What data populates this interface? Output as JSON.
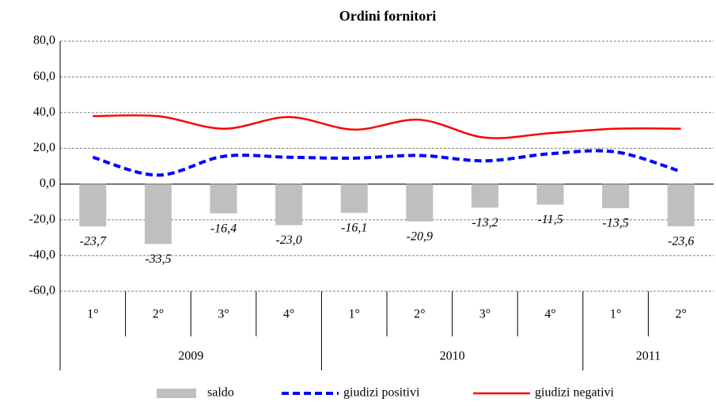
{
  "chart_data": {
    "type": "combo",
    "title": "Ordini fornitori",
    "categories": [
      "1°",
      "2°",
      "3°",
      "4°",
      "1°",
      "2°",
      "3°",
      "4°",
      "1°",
      "2°"
    ],
    "category_groups": [
      "2009",
      "2010",
      "2011"
    ],
    "series": [
      {
        "name": "saldo",
        "type": "bar",
        "color": "#bfbfbf",
        "values": [
          -23.7,
          -33.5,
          -16.4,
          -23.0,
          -16.1,
          -20.9,
          -13.2,
          -11.5,
          -13.5,
          -23.6
        ],
        "value_labels": [
          "-23,7",
          "-33,5",
          "-16,4",
          "-23,0",
          "-16,1",
          "-20,9",
          "-13,2",
          "-11,5",
          "-13,5",
          "-23,6"
        ]
      },
      {
        "name": "giudizi positivi",
        "type": "line",
        "dashed": true,
        "color": "#0000ff",
        "values": [
          15,
          5,
          15.5,
          15,
          14.5,
          16,
          13,
          17,
          18,
          7
        ]
      },
      {
        "name": "giudizi negativi",
        "type": "line",
        "dashed": false,
        "color": "#ff0000",
        "values": [
          38,
          38,
          31,
          37.5,
          30.5,
          36,
          26,
          28.5,
          31,
          31
        ]
      }
    ],
    "ylim": [
      -60,
      80
    ],
    "yticks": [
      {
        "value": -60,
        "label": "-60,0"
      },
      {
        "value": -40,
        "label": "-40,0"
      },
      {
        "value": -20,
        "label": "-20,0"
      },
      {
        "value": 0,
        "label": "0,0"
      },
      {
        "value": 20,
        "label": "20,0"
      },
      {
        "value": 40,
        "label": "40,0"
      },
      {
        "value": 60,
        "label": "60,0"
      },
      {
        "value": 80,
        "label": "80,0"
      }
    ],
    "grid": true,
    "legend": "bottom"
  }
}
